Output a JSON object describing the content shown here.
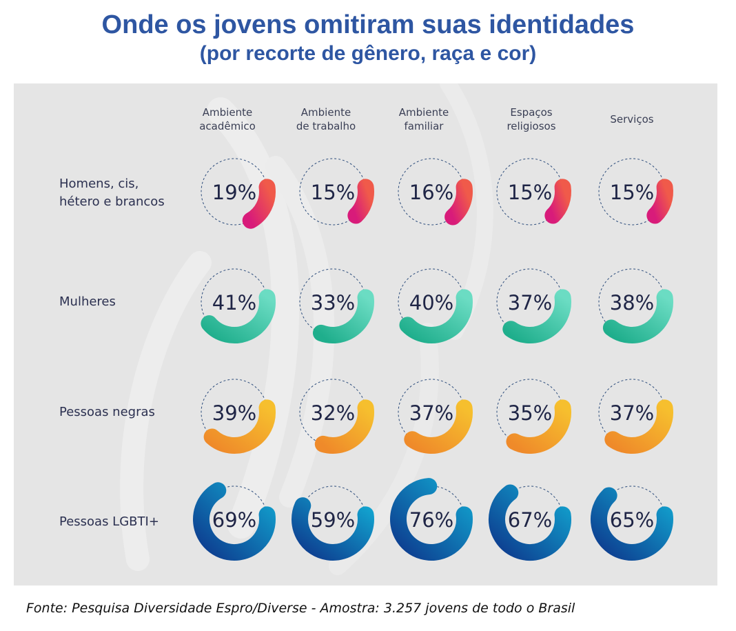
{
  "title": "Onde os jovens omitiram suas identidades",
  "subtitle": "(por recorte de gênero, raça e cor)",
  "source": "Fonte: Pesquisa Diversidade Espro/Diverse - Amostra: 3.257 jovens de todo o Brasil",
  "columns": [
    {
      "line1": "Ambiente",
      "line2": "acadêmico"
    },
    {
      "line1": "Ambiente",
      "line2": "de trabalho"
    },
    {
      "line1": "Ambiente",
      "line2": "familiar"
    },
    {
      "line1": "Espaços",
      "line2": "religiosos"
    },
    {
      "line1": "Serviços",
      "line2": ""
    }
  ],
  "rows": [
    {
      "line1": "Homens, cis,",
      "line2": "hétero e brancos"
    },
    {
      "line1": "Mulheres",
      "line2": ""
    },
    {
      "line1": "Pessoas negras",
      "line2": ""
    },
    {
      "line1": "Pessoas LGBTI+",
      "line2": ""
    }
  ],
  "colors": {
    "background_panel": "#e5e5e5",
    "title": "#2e56a2",
    "value_text": "#1f2546",
    "dashed_ring": "#2a4a7a",
    "homens": [
      "#d81b7a",
      "#f05a4a"
    ],
    "mulheres": [
      "#1fae8c",
      "#6bdcc3"
    ],
    "negras": [
      "#ef8a2a",
      "#f6bf2e"
    ],
    "lgbti": [
      "#0d3b8e",
      "#12a3cf"
    ]
  },
  "chart_data": {
    "type": "radial-bar-grid",
    "categories": [
      "Ambiente acadêmico",
      "Ambiente de trabalho",
      "Ambiente familiar",
      "Espaços religiosos",
      "Serviços"
    ],
    "unit": "%",
    "series": [
      {
        "name": "Homens, cis, hétero e brancos",
        "values": [
          19,
          15,
          16,
          15,
          15
        ],
        "labels": [
          "19%",
          "15%",
          "16%",
          "15%",
          "15%"
        ]
      },
      {
        "name": "Mulheres",
        "values": [
          41,
          33,
          40,
          37,
          38
        ],
        "labels": [
          "41%",
          "33%",
          "40%",
          "37%",
          "38%"
        ]
      },
      {
        "name": "Pessoas negras",
        "values": [
          39,
          32,
          37,
          35,
          37
        ],
        "labels": [
          "39%",
          "32%",
          "37%",
          "35%",
          "37%"
        ]
      },
      {
        "name": "Pessoas LGBTI+",
        "values": [
          69,
          59,
          76,
          67,
          65
        ],
        "labels": [
          "69%",
          "59%",
          "76%",
          "67%",
          "65%"
        ]
      }
    ]
  }
}
